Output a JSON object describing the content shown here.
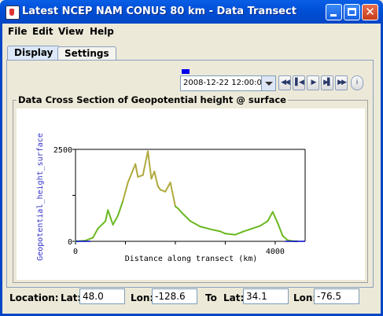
{
  "window": {
    "title": "Latest NCEP NAM CONUS 80 km - Data Transect"
  },
  "menu": [
    "File",
    "Edit",
    "View",
    "Help"
  ],
  "tabs": [
    {
      "label": "Display",
      "active": true
    },
    {
      "label": "Settings",
      "active": false
    }
  ],
  "time": {
    "selected": "2008-12-22 12:00:00Z"
  },
  "controls": [
    "first-step-icon",
    "step-back-icon",
    "play-icon",
    "step-forward-icon",
    "last-step-icon",
    "info-icon"
  ],
  "panel": {
    "title": "Data Cross Section  of Geopotential height @ surface"
  },
  "chart_data": {
    "type": "line",
    "xlabel": "Distance along transect (km)",
    "ylabel": "Geopotential_height_surface",
    "xlim": [
      0,
      4600
    ],
    "ylim": [
      0,
      2500
    ],
    "xticks": [
      "0",
      "4000"
    ],
    "yticks": [
      "0",
      "2500"
    ],
    "x": [
      0,
      200,
      350,
      450,
      550,
      600,
      650,
      700,
      750,
      850,
      950,
      1050,
      1200,
      1250,
      1350,
      1450,
      1520,
      1580,
      1650,
      1700,
      1800,
      1900,
      2000,
      2050,
      2150,
      2300,
      2500,
      2700,
      2900,
      3000,
      3200,
      3350,
      3500,
      3700,
      3850,
      3950,
      4050,
      4150,
      4250,
      4350,
      4450
    ],
    "y": [
      0,
      20,
      100,
      350,
      480,
      550,
      850,
      650,
      450,
      700,
      1100,
      1600,
      2100,
      1750,
      1800,
      2450,
      1700,
      1900,
      1500,
      1400,
      1350,
      1600,
      950,
      900,
      750,
      550,
      400,
      330,
      270,
      210,
      180,
      260,
      330,
      420,
      550,
      800,
      500,
      150,
      30,
      5,
      0
    ],
    "line_colors": [
      "#6ab820",
      "#b0aa3c"
    ]
  },
  "location": {
    "label": "Location:",
    "lat_label": "Lat:",
    "lat1": "48.0",
    "lon_label": "Lon:",
    "lon1": "-128.6",
    "to_label": "To",
    "lat2": "34.1",
    "lon2": "-76.5"
  }
}
